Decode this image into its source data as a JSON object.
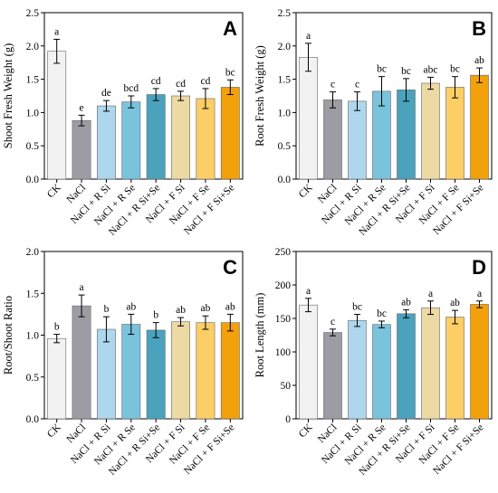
{
  "colors": [
    "#f2f2f2",
    "#9d9ca3",
    "#aed6ec",
    "#79c3dd",
    "#4aa2bd",
    "#ecd9a3",
    "#fcce66",
    "#f2a10b"
  ],
  "chart_data": [
    {
      "type": "bar",
      "panel_label": "A",
      "ylabel": "Shoot Fresh Weight (g)",
      "ylim": [
        0,
        2.5
      ],
      "yticks": [
        "0.0",
        "0.5",
        "1.0",
        "1.5",
        "2.0",
        "2.5"
      ],
      "categories": [
        "CK",
        "NaCl",
        "NaCl + R Si",
        "NaCl + R Se",
        "NaCl + R Si+Se",
        "NaCl + F Si",
        "NaCl + F Se",
        "NaCl + F Si+Se"
      ],
      "values": [
        1.92,
        0.88,
        1.1,
        1.16,
        1.27,
        1.25,
        1.21,
        1.38
      ],
      "errors": [
        0.18,
        0.08,
        0.08,
        0.09,
        0.09,
        0.07,
        0.15,
        0.11
      ],
      "letters": [
        "a",
        "e",
        "de",
        "bcd",
        "cd",
        "cd",
        "cd",
        "bc"
      ]
    },
    {
      "type": "bar",
      "panel_label": "B",
      "ylabel": "Root Fresh Weight (g)",
      "ylim": [
        0,
        2.5
      ],
      "yticks": [
        "0.0",
        "0.5",
        "1.0",
        "1.5",
        "2.0",
        "2.5"
      ],
      "categories": [
        "CK",
        "NaCl",
        "NaCl + R Si",
        "NaCl + R Se",
        "NaCl + R Si+Se",
        "NaCl + F Si",
        "NaCl + F Se",
        "NaCl + F Si+Se"
      ],
      "values": [
        1.83,
        1.19,
        1.17,
        1.32,
        1.34,
        1.44,
        1.38,
        1.56
      ],
      "errors": [
        0.21,
        0.12,
        0.14,
        0.22,
        0.17,
        0.09,
        0.16,
        0.11
      ],
      "letters": [
        "a",
        "c",
        "c",
        "bc",
        "bc",
        "abc",
        "bc",
        "ab"
      ]
    },
    {
      "type": "bar",
      "panel_label": "C",
      "ylabel": "Root/Shoot Ratio",
      "ylim": [
        0,
        2.0
      ],
      "yticks": [
        "0.0",
        "0.5",
        "1.0",
        "1.5",
        "2.0"
      ],
      "categories": [
        "CK",
        "NaCl",
        "NaCl + R Si",
        "NaCl + R Se",
        "NaCl + R Si+Se",
        "NaCl + F Si",
        "NaCl + F Se",
        "NaCl + F Si+Se"
      ],
      "values": [
        0.96,
        1.35,
        1.07,
        1.13,
        1.06,
        1.16,
        1.15,
        1.15
      ],
      "errors": [
        0.05,
        0.13,
        0.15,
        0.12,
        0.09,
        0.05,
        0.08,
        0.1
      ],
      "letters": [
        "b",
        "a",
        "b",
        "ab",
        "b",
        "ab",
        "ab",
        "ab"
      ]
    },
    {
      "type": "bar",
      "panel_label": "D",
      "ylabel": "Root Length (mm)",
      "ylim": [
        0,
        250
      ],
      "yticks": [
        "0",
        "50",
        "100",
        "150",
        "200",
        "250"
      ],
      "categories": [
        "CK",
        "NaCl",
        "NaCl + R Si",
        "NaCl + R Se",
        "NaCl + R Si+Se",
        "NaCl + F Si",
        "NaCl + F Se",
        "NaCl + F Si+Se"
      ],
      "values": [
        170,
        129,
        147,
        141,
        157,
        166,
        152,
        171
      ],
      "errors": [
        10,
        5,
        9,
        5,
        6,
        10,
        10,
        5
      ],
      "letters": [
        "a",
        "c",
        "bc",
        "bc",
        "ab",
        "a",
        "ab",
        "a"
      ]
    }
  ]
}
